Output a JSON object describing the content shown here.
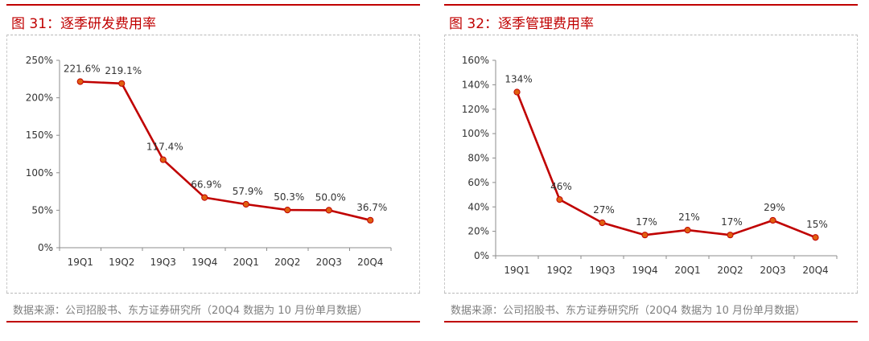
{
  "charts": [
    {
      "title": "图 31：逐季研发费用率",
      "source": "数据来源：公司招股书、东方证券研究所（20Q4 数据为 10 月份单月数据）"
    },
    {
      "title": "图 32：逐季管理费用率",
      "source": "数据来源：公司招股书、东方证券研究所（20Q4 数据为 10 月份单月数据）"
    }
  ],
  "colors": {
    "accent": "#c00000",
    "line": "#c00000",
    "marker": "#e06010",
    "text": "#333333"
  },
  "chart_data": [
    {
      "type": "line",
      "title": "图 31：逐季研发费用率",
      "categories": [
        "19Q1",
        "19Q2",
        "19Q3",
        "19Q4",
        "20Q1",
        "20Q2",
        "20Q3",
        "20Q4"
      ],
      "values": [
        221.6,
        219.1,
        117.4,
        66.9,
        57.9,
        50.3,
        50.0,
        36.7
      ],
      "labels": [
        "221.6%",
        "219.1%",
        "117.4%",
        "66.9%",
        "57.9%",
        "50.3%",
        "50.0%",
        "36.7%"
      ],
      "ylim": [
        0,
        250
      ],
      "yticks": [
        0,
        50,
        100,
        150,
        200,
        250
      ],
      "ytick_labels": [
        "0%",
        "50%",
        "100%",
        "150%",
        "200%",
        "250%"
      ],
      "xlabel": "",
      "ylabel": "",
      "grid": false
    },
    {
      "type": "line",
      "title": "图 32：逐季管理费用率",
      "categories": [
        "19Q1",
        "19Q2",
        "19Q3",
        "19Q4",
        "20Q1",
        "20Q2",
        "20Q3",
        "20Q4"
      ],
      "values": [
        134,
        46,
        27,
        17,
        21,
        17,
        29,
        15
      ],
      "labels": [
        "134%",
        "46%",
        "27%",
        "17%",
        "21%",
        "17%",
        "29%",
        "15%"
      ],
      "ylim": [
        0,
        160
      ],
      "yticks": [
        0,
        20,
        40,
        60,
        80,
        100,
        120,
        140,
        160
      ],
      "ytick_labels": [
        "0%",
        "20%",
        "40%",
        "60%",
        "80%",
        "100%",
        "120%",
        "140%",
        "160%"
      ],
      "xlabel": "",
      "ylabel": "",
      "grid": false
    }
  ]
}
